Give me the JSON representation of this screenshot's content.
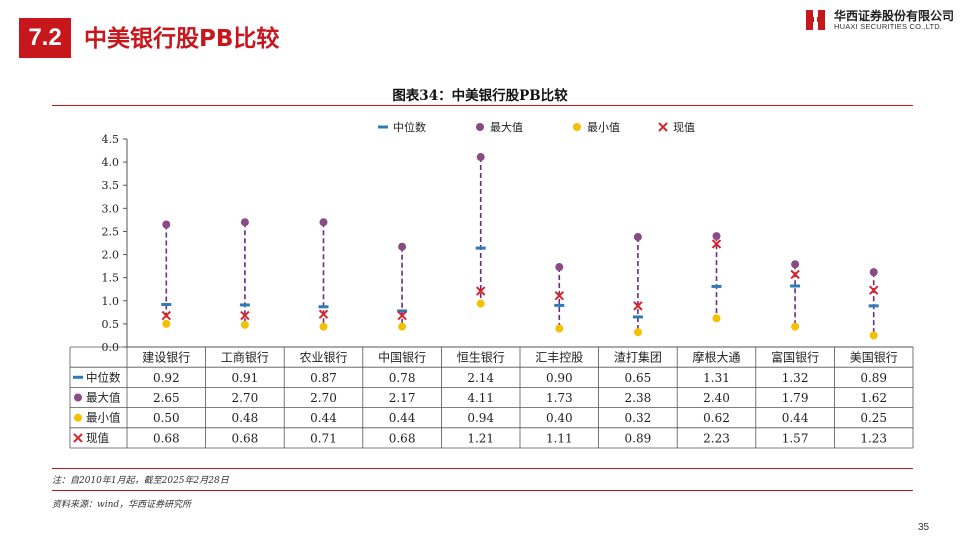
{
  "header": {
    "section_number": "7.2",
    "title": "中美银行股PB比较",
    "brand_name_cn": "华西证券股份有限公司",
    "brand_name_en": "HUAXI SECURITIES CO.,LTD."
  },
  "chart_title": "图表34：中美银行股PB比较",
  "note": "注：自2010年1月起，截至2025年2月28日",
  "source": "资料来源：wind，华西证券研究所",
  "page_number": "35",
  "colors": {
    "accent": "#c8161d",
    "median": "#2e7cb6",
    "max": "#8a4a86",
    "min": "#f5c000",
    "current": "#d6262b",
    "range_line": "#6a2b85"
  },
  "chart_data": {
    "type": "scatter",
    "categories": [
      "建设银行",
      "工商银行",
      "农业银行",
      "中国银行",
      "恒生银行",
      "汇丰控股",
      "渣打集团",
      "摩根大通",
      "富国银行",
      "美国银行"
    ],
    "series": [
      {
        "name": "中位数",
        "marker": "dash",
        "values": [
          0.92,
          0.91,
          0.87,
          0.78,
          2.14,
          0.9,
          0.65,
          1.31,
          1.32,
          0.89
        ]
      },
      {
        "name": "最大值",
        "marker": "circle",
        "values": [
          2.65,
          2.7,
          2.7,
          2.17,
          4.11,
          1.73,
          2.38,
          2.4,
          1.79,
          1.62
        ]
      },
      {
        "name": "最小值",
        "marker": "circle",
        "values": [
          0.5,
          0.48,
          0.44,
          0.44,
          0.94,
          0.4,
          0.32,
          0.62,
          0.44,
          0.25
        ]
      },
      {
        "name": "现值",
        "marker": "x",
        "values": [
          0.68,
          0.68,
          0.71,
          0.68,
          1.21,
          1.11,
          0.89,
          2.23,
          1.57,
          1.23
        ]
      }
    ],
    "table_rows": [
      [
        "0.92",
        "0.91",
        "0.87",
        "0.78",
        "2.14",
        "0.90",
        "0.65",
        "1.31",
        "1.32",
        "0.89"
      ],
      [
        "2.65",
        "2.70",
        "2.70",
        "2.17",
        "4.11",
        "1.73",
        "2.38",
        "2.40",
        "1.79",
        "1.62"
      ],
      [
        "0.50",
        "0.48",
        "0.44",
        "0.44",
        "0.94",
        "0.40",
        "0.32",
        "0.62",
        "0.44",
        "0.25"
      ],
      [
        "0.68",
        "0.68",
        "0.71",
        "0.68",
        "1.21",
        "1.11",
        "0.89",
        "2.23",
        "1.57",
        "1.23"
      ]
    ],
    "y_ticks": [
      "0.0",
      "0.5",
      "1.0",
      "1.5",
      "2.0",
      "2.5",
      "3.0",
      "3.5",
      "4.0",
      "4.5"
    ],
    "ylim": [
      0,
      4.5
    ],
    "legend_position": "top",
    "grid": false
  }
}
